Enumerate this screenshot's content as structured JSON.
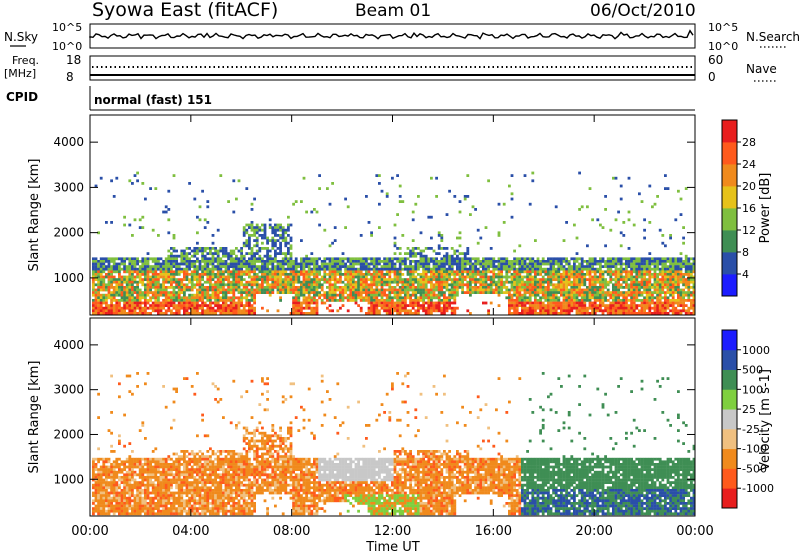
{
  "header": {
    "station": "Syowa East (fitACF)",
    "beam": "Beam 01",
    "date": "06/Oct/2010"
  },
  "top_panels": {
    "nsky_label": "N.Sky",
    "nsky_ticks": [
      "10^5",
      "10^0"
    ],
    "nsearch_label": "N.Search",
    "nsearch_ticks": [
      "10^5",
      "10^0"
    ],
    "freq_label_line1": "Freq.",
    "freq_label_line2": "[MHz]",
    "freq_ticks": [
      "18",
      "8"
    ],
    "nave_label": "Nave",
    "nave_ticks": [
      "60",
      "0"
    ],
    "cpid_label": "CPID",
    "cpid_value": "normal (fast) 151"
  },
  "chart_data": [
    {
      "type": "heatmap",
      "name": "power-panel",
      "ylabel": "Slant Range [km]",
      "y_ticks": [
        "1000",
        "2000",
        "3000",
        "4000"
      ],
      "y_values": [
        1000,
        2000,
        3000,
        4000
      ],
      "ylim": [
        180,
        4600
      ],
      "xlim_hours": [
        0,
        24
      ],
      "colorbar_label": "Power [dB]",
      "colorbar_ticks": [
        "4",
        "8",
        "12",
        "16",
        "20",
        "24",
        "28"
      ],
      "colorbar_values": [
        4,
        8,
        12,
        16,
        20,
        24,
        28
      ],
      "colorbar_range": [
        0,
        30
      ],
      "colors_bottom_to_top": [
        "#1c1cff",
        "#2a4fa8",
        "#3f8e54",
        "#7fbf3f",
        "#e6c21a",
        "#f08a1c",
        "#ff5a1c",
        "#e81e1e"
      ]
    },
    {
      "type": "heatmap",
      "name": "velocity-panel",
      "ylabel": "Slant Range [km]",
      "y_ticks": [
        "1000",
        "2000",
        "3000",
        "4000"
      ],
      "y_values": [
        1000,
        2000,
        3000,
        4000
      ],
      "ylim": [
        180,
        4600
      ],
      "xlim_hours": [
        0,
        24
      ],
      "xlabel": "Time UT",
      "x_ticks": [
        "00:00",
        "04:00",
        "08:00",
        "12:00",
        "16:00",
        "20:00",
        "00:00"
      ],
      "x_values": [
        0,
        4,
        8,
        12,
        16,
        20,
        24
      ],
      "colorbar_label": "Velocity [m s-1]",
      "colorbar_ticks": [
        "-1000",
        "-500",
        "-100",
        "-25",
        "25",
        "100",
        "500",
        "1000"
      ],
      "colors_bottom_to_top": [
        "#e81e1e",
        "#ff5a1c",
        "#f08a1c",
        "#f0c080",
        "#c8c8c8",
        "#7fcf3f",
        "#3f8e54",
        "#2a4fa8",
        "#1c1cff"
      ]
    }
  ]
}
